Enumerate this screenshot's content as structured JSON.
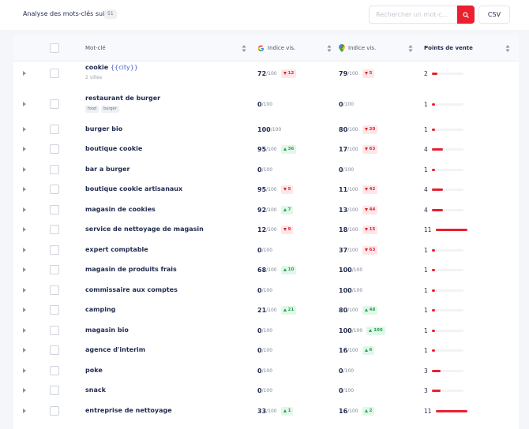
{
  "header": {
    "title": "Analyse des mots-clés suivis",
    "count": "51",
    "search_placeholder": "Rechercher un mot-c...",
    "csv_label": "CSV"
  },
  "columns": {
    "keyword": "Mot-clé",
    "google_index": "Indice vis.",
    "maps_index": "Indice vis.",
    "points_of_sale": "Points de vente"
  },
  "icons": {
    "search": "search-icon",
    "google": "google-icon",
    "maps": "map-pin-icon",
    "sort": "sort-icon",
    "expand": "caret-right-icon"
  },
  "colors": {
    "accent": "#e8202f",
    "up": "#1ea74a",
    "down": "#e8202f",
    "text": "#1f2a4d"
  },
  "max_denominator": "/100",
  "rows": [
    {
      "keyword": "cookie",
      "variable": "{{city}}",
      "subtitle": "2 villes",
      "tags": [],
      "g_score": "72",
      "g_delta": "12",
      "g_dir": "down",
      "m_score": "79",
      "m_delta": "5",
      "m_dir": "down",
      "pdv": "2",
      "pdv_fraction": 0.18
    },
    {
      "keyword": "restaurant de burger",
      "variable": "",
      "subtitle": "",
      "tags": [
        "food",
        "burger"
      ],
      "g_score": "0",
      "g_delta": "",
      "g_dir": "",
      "m_score": "0",
      "m_delta": "",
      "m_dir": "",
      "pdv": "1",
      "pdv_fraction": 0.09
    },
    {
      "keyword": "burger bio",
      "variable": "",
      "subtitle": "",
      "tags": [],
      "g_score": "100",
      "g_delta": "",
      "g_dir": "",
      "m_score": "80",
      "m_delta": "20",
      "m_dir": "down",
      "pdv": "1",
      "pdv_fraction": 0.09
    },
    {
      "keyword": "boutique cookie",
      "variable": "",
      "subtitle": "",
      "tags": [],
      "g_score": "95",
      "g_delta": "36",
      "g_dir": "up",
      "m_score": "17",
      "m_delta": "63",
      "m_dir": "down",
      "pdv": "4",
      "pdv_fraction": 0.36
    },
    {
      "keyword": "bar a burger",
      "variable": "",
      "subtitle": "",
      "tags": [],
      "g_score": "0",
      "g_delta": "",
      "g_dir": "",
      "m_score": "0",
      "m_delta": "",
      "m_dir": "",
      "pdv": "1",
      "pdv_fraction": 0.09
    },
    {
      "keyword": "boutique cookie artisanaux",
      "variable": "",
      "subtitle": "",
      "tags": [],
      "g_score": "95",
      "g_delta": "5",
      "g_dir": "down",
      "m_score": "11",
      "m_delta": "42",
      "m_dir": "down",
      "pdv": "4",
      "pdv_fraction": 0.36
    },
    {
      "keyword": "magasin de cookies",
      "variable": "",
      "subtitle": "",
      "tags": [],
      "g_score": "92",
      "g_delta": "7",
      "g_dir": "up",
      "m_score": "13",
      "m_delta": "44",
      "m_dir": "down",
      "pdv": "4",
      "pdv_fraction": 0.36
    },
    {
      "keyword": "service de nettoyage de magasin",
      "variable": "",
      "subtitle": "",
      "tags": [],
      "g_score": "12",
      "g_delta": "9",
      "g_dir": "down",
      "m_score": "18",
      "m_delta": "15",
      "m_dir": "down",
      "pdv": "11",
      "pdv_fraction": 1.0
    },
    {
      "keyword": "expert comptable",
      "variable": "",
      "subtitle": "",
      "tags": [],
      "g_score": "0",
      "g_delta": "",
      "g_dir": "",
      "m_score": "37",
      "m_delta": "63",
      "m_dir": "down",
      "pdv": "1",
      "pdv_fraction": 0.09
    },
    {
      "keyword": "magasin de produits frais",
      "variable": "",
      "subtitle": "",
      "tags": [],
      "g_score": "68",
      "g_delta": "10",
      "g_dir": "up",
      "m_score": "100",
      "m_delta": "",
      "m_dir": "",
      "pdv": "1",
      "pdv_fraction": 0.09
    },
    {
      "keyword": "commissaire aux comptes",
      "variable": "",
      "subtitle": "",
      "tags": [],
      "g_score": "0",
      "g_delta": "",
      "g_dir": "",
      "m_score": "100",
      "m_delta": "",
      "m_dir": "",
      "pdv": "1",
      "pdv_fraction": 0.09
    },
    {
      "keyword": "camping",
      "variable": "",
      "subtitle": "",
      "tags": [],
      "g_score": "21",
      "g_delta": "21",
      "g_dir": "up",
      "m_score": "80",
      "m_delta": "48",
      "m_dir": "up",
      "pdv": "1",
      "pdv_fraction": 0.09
    },
    {
      "keyword": "magasin bio",
      "variable": "",
      "subtitle": "",
      "tags": [],
      "g_score": "0",
      "g_delta": "",
      "g_dir": "",
      "m_score": "100",
      "m_delta": "100",
      "m_dir": "up",
      "pdv": "1",
      "pdv_fraction": 0.09
    },
    {
      "keyword": "agence d'interim",
      "variable": "",
      "subtitle": "",
      "tags": [],
      "g_score": "0",
      "g_delta": "",
      "g_dir": "",
      "m_score": "16",
      "m_delta": "6",
      "m_dir": "up",
      "pdv": "1",
      "pdv_fraction": 0.09
    },
    {
      "keyword": "poke",
      "variable": "",
      "subtitle": "",
      "tags": [],
      "g_score": "0",
      "g_delta": "",
      "g_dir": "",
      "m_score": "0",
      "m_delta": "",
      "m_dir": "",
      "pdv": "3",
      "pdv_fraction": 0.27
    },
    {
      "keyword": "snack",
      "variable": "",
      "subtitle": "",
      "tags": [],
      "g_score": "0",
      "g_delta": "",
      "g_dir": "",
      "m_score": "0",
      "m_delta": "",
      "m_dir": "",
      "pdv": "3",
      "pdv_fraction": 0.27
    },
    {
      "keyword": "entreprise de nettoyage",
      "variable": "",
      "subtitle": "",
      "tags": [],
      "g_score": "33",
      "g_delta": "1",
      "g_dir": "up",
      "m_score": "16",
      "m_delta": "2",
      "m_dir": "up",
      "pdv": "11",
      "pdv_fraction": 1.0
    }
  ]
}
